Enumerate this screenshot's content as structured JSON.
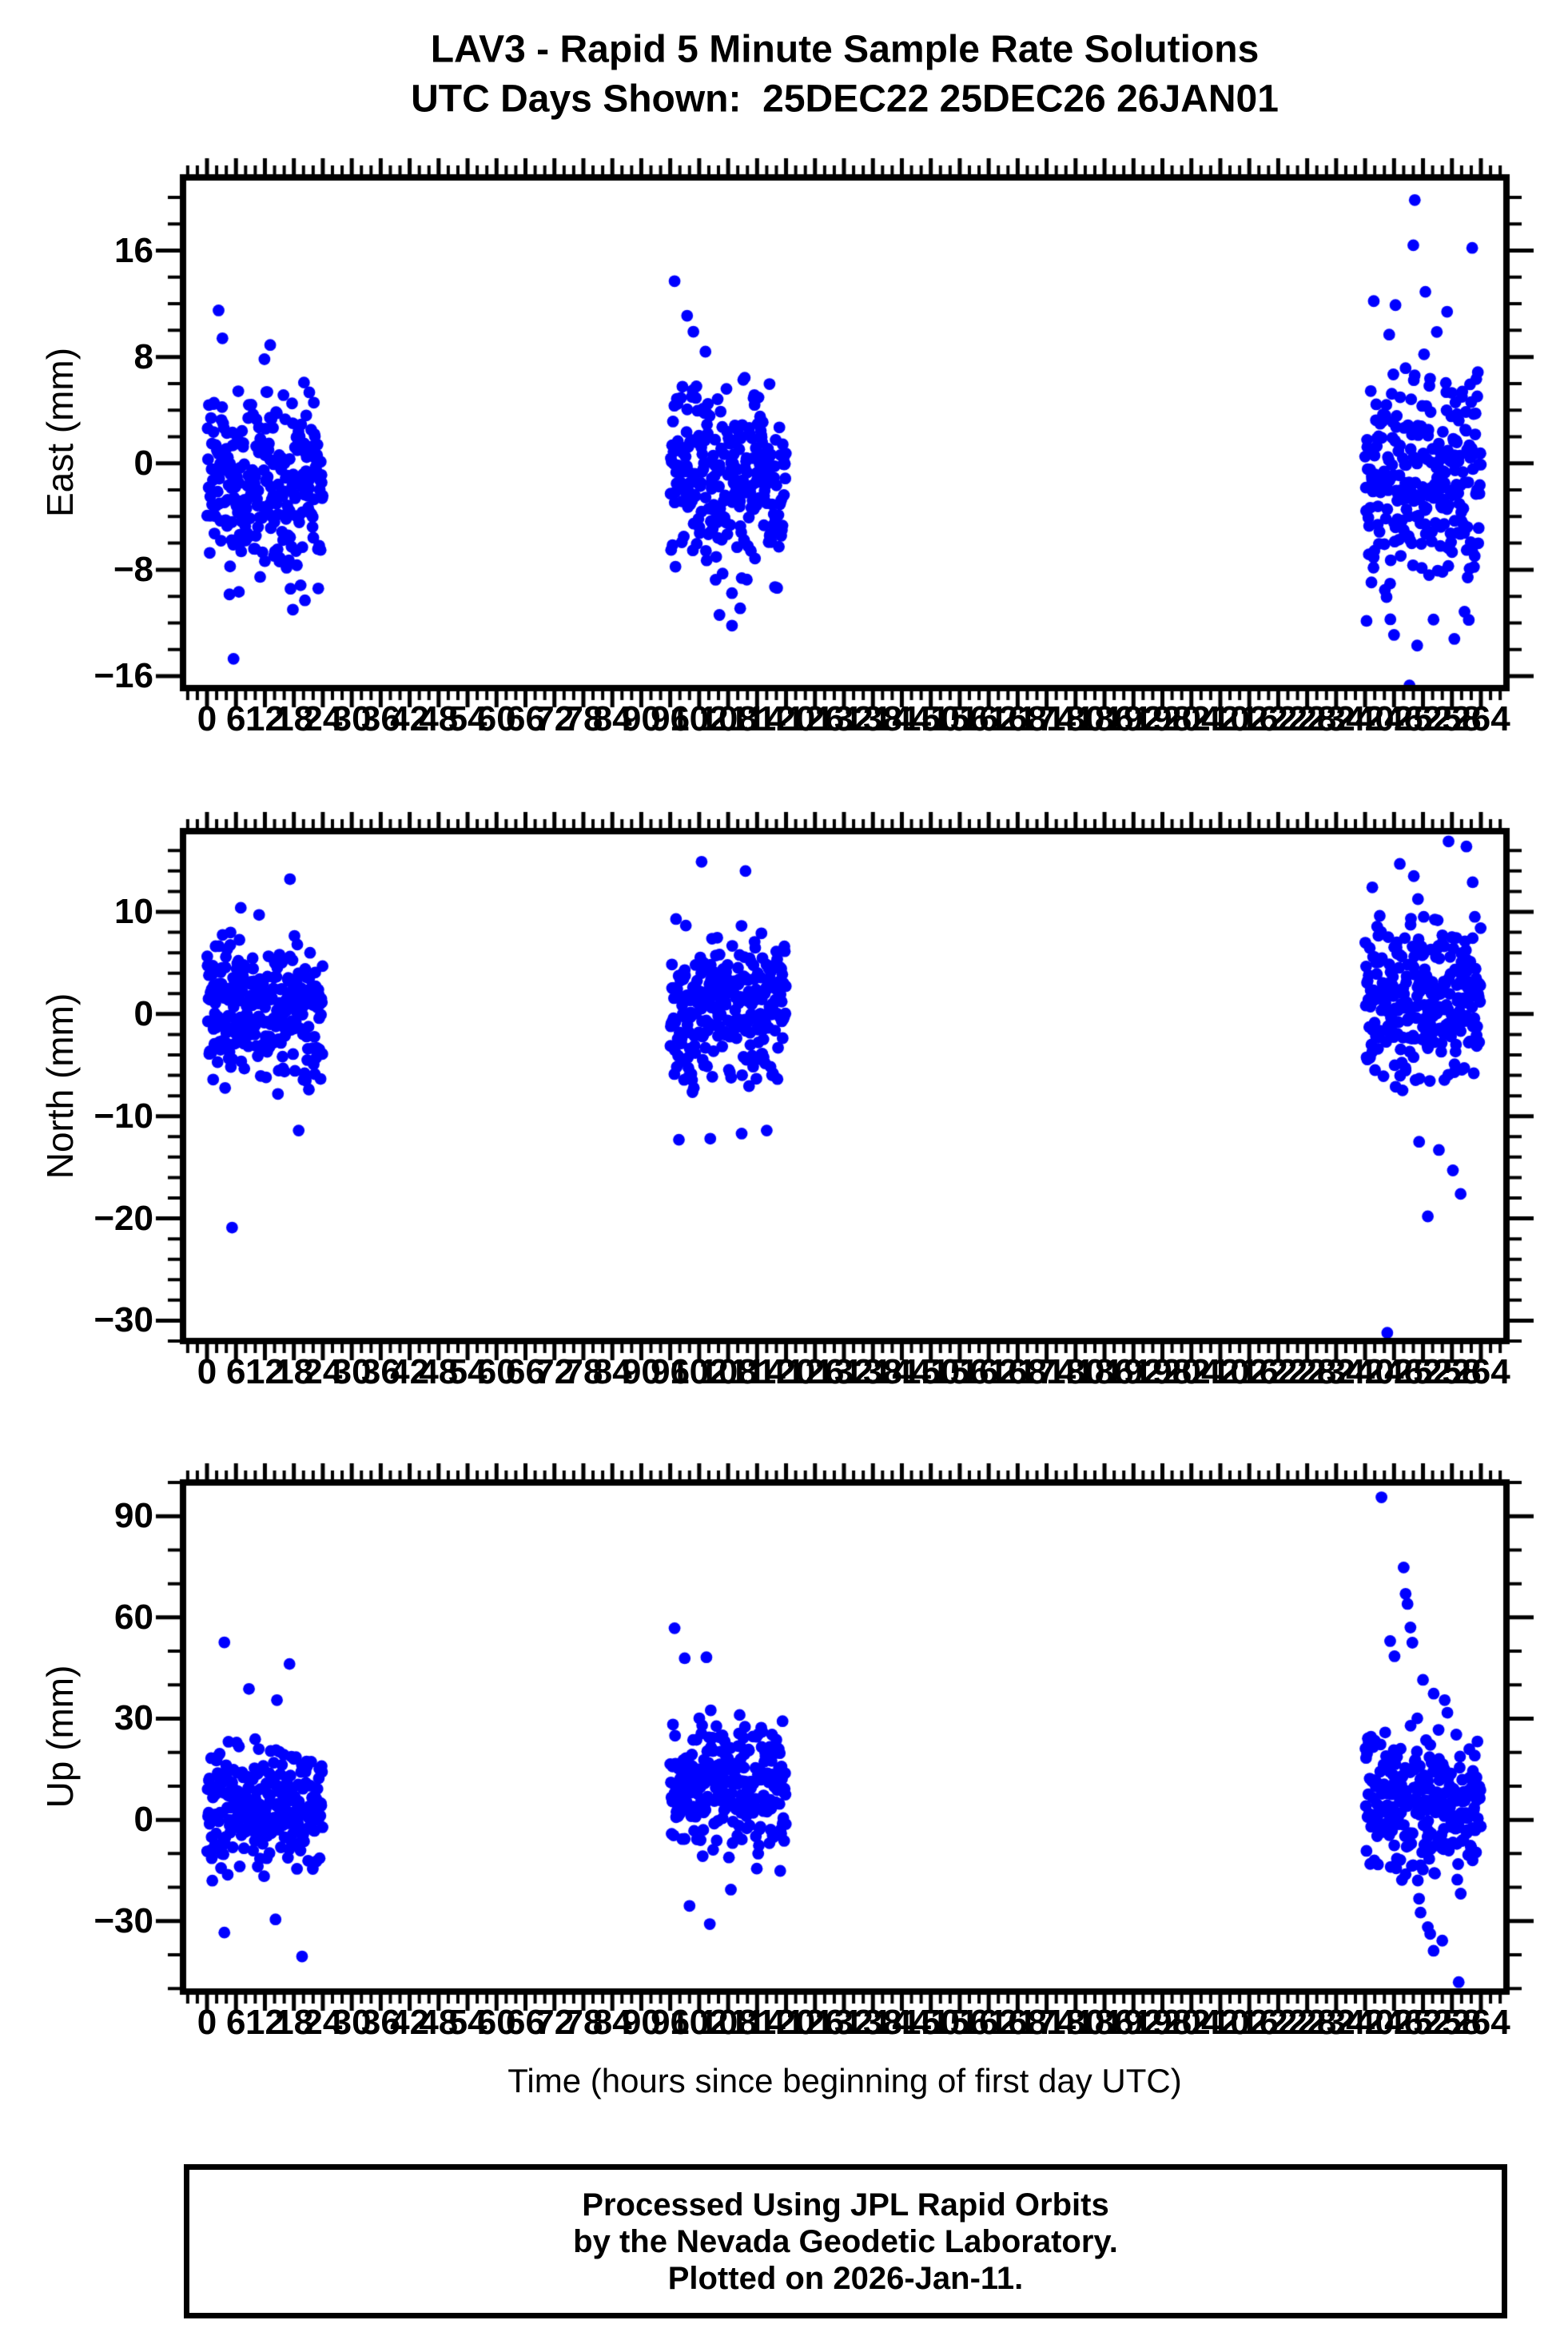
{
  "title": {
    "line1": "LAV3 - Rapid 5 Minute Sample Rate Solutions",
    "line2": "UTC Days Shown:  25DEC22 25DEC26 26JAN01"
  },
  "utc_days": [
    "25DEC22",
    "25DEC26",
    "26JAN01"
  ],
  "xaxis": {
    "label": "Time (hours since beginning of first day UTC)",
    "range_hours": [
      0,
      264
    ],
    "major_tick_step_hours": 6,
    "minor_tick_step_hours": 2,
    "tick_labels": [
      0,
      6,
      12,
      18,
      24,
      30,
      36,
      42,
      48,
      54,
      60,
      66,
      72,
      78,
      84,
      90,
      96,
      102,
      108,
      114,
      120,
      126,
      132,
      138,
      144,
      150,
      156,
      162,
      168,
      174,
      180,
      186,
      192,
      198,
      204,
      210,
      216,
      222,
      228,
      234,
      240,
      246,
      252,
      258,
      264
    ]
  },
  "caption": {
    "line1": "Processed Using JPL Rapid Orbits",
    "line2": "by the Nevada Geodetic Laboratory.",
    "line3": "Plotted on 2026-Jan-11."
  },
  "colors": {
    "point": "#0000ff",
    "axis": "#000000",
    "background": "#ffffff",
    "text": "#000000"
  },
  "seed": 20260111,
  "chart_data": [
    {
      "type": "scatter",
      "name": "East",
      "ylabel": "East (mm)",
      "yticks": [
        16,
        8,
        0,
        -8,
        -16
      ],
      "y_minor_step": 2,
      "ylim": [
        -16.9,
        21.5
      ],
      "xlim": [
        -4.97,
        269.3
      ],
      "clusters": [
        {
          "t_range": [
            0,
            24
          ],
          "n": 272,
          "mean": -1.6,
          "sd": 3.3,
          "min": -10.8,
          "max": 8.2
        },
        {
          "t_range": [
            96,
            120
          ],
          "n": 268,
          "mean": -1.2,
          "sd": 3.3,
          "min": -10.2,
          "max": 7.6
        },
        {
          "t_range": [
            240,
            264
          ],
          "n": 272,
          "mean": -1.6,
          "sd": 4.3,
          "min": -12.6,
          "max": 10.6
        }
      ],
      "outliers": [
        [
          2.4,
          11.5
        ],
        [
          3.2,
          9.4
        ],
        [
          13.1,
          8.9
        ],
        [
          5.5,
          -14.7
        ],
        [
          17.8,
          -11.0
        ],
        [
          20.3,
          -10.3
        ],
        [
          96.9,
          13.7
        ],
        [
          99.5,
          11.1
        ],
        [
          100.8,
          9.9
        ],
        [
          103.3,
          8.4
        ],
        [
          108.8,
          -12.2
        ],
        [
          106.2,
          -11.4
        ],
        [
          110.5,
          -10.9
        ],
        [
          250.3,
          19.8
        ],
        [
          250.0,
          16.4
        ],
        [
          262.2,
          16.2
        ],
        [
          252.5,
          12.9
        ],
        [
          241.8,
          12.2
        ],
        [
          246.3,
          11.9
        ],
        [
          257.0,
          11.4
        ],
        [
          249.2,
          -16.7
        ],
        [
          250.8,
          -13.7
        ],
        [
          258.5,
          -13.2
        ],
        [
          246.0,
          -12.9
        ]
      ]
    },
    {
      "type": "scatter",
      "name": "North",
      "ylabel": "North (mm)",
      "yticks": [
        10,
        0,
        -10,
        -20,
        -30
      ],
      "y_minor_step": 2,
      "ylim": [
        -32.0,
        17.9
      ],
      "xlim": [
        -4.97,
        269.3
      ],
      "clusters": [
        {
          "t_range": [
            0,
            24
          ],
          "n": 272,
          "mean": 0.4,
          "sd": 3.2,
          "min": -8.8,
          "max": 8.4
        },
        {
          "t_range": [
            96,
            120
          ],
          "n": 268,
          "mean": 0.2,
          "sd": 3.5,
          "min": -8.8,
          "max": 8.8
        },
        {
          "t_range": [
            240,
            264
          ],
          "n": 272,
          "mean": 1.6,
          "sd": 4.1,
          "min": -9.2,
          "max": 12.4
        }
      ],
      "outliers": [
        [
          17.2,
          13.2
        ],
        [
          7.0,
          10.4
        ],
        [
          10.8,
          9.7
        ],
        [
          19.0,
          -11.4
        ],
        [
          5.2,
          -20.9
        ],
        [
          102.5,
          14.9
        ],
        [
          111.6,
          14.0
        ],
        [
          97.2,
          9.3
        ],
        [
          114.9,
          7.9
        ],
        [
          97.8,
          -12.3
        ],
        [
          104.3,
          -12.2
        ],
        [
          110.8,
          -11.7
        ],
        [
          116.0,
          -11.4
        ],
        [
          257.3,
          16.9
        ],
        [
          261.0,
          16.4
        ],
        [
          247.2,
          14.7
        ],
        [
          250.1,
          13.5
        ],
        [
          262.3,
          12.9
        ],
        [
          241.5,
          12.4
        ],
        [
          244.6,
          -31.2
        ],
        [
          253.0,
          -19.8
        ],
        [
          258.2,
          -15.3
        ],
        [
          259.8,
          -17.6
        ],
        [
          255.3,
          -13.3
        ],
        [
          251.2,
          -12.5
        ]
      ]
    },
    {
      "type": "scatter",
      "name": "Up",
      "ylabel": "Up (mm)",
      "yticks": [
        90,
        60,
        30,
        0,
        -30
      ],
      "y_minor_step": 10,
      "ylim": [
        -50.9,
        100.0
      ],
      "xlim": [
        -4.97,
        269.3
      ],
      "clusters": [
        {
          "t_range": [
            0,
            24
          ],
          "n": 270,
          "mean": 4.5,
          "sd": 9.5,
          "min": -20.0,
          "max": 33.0
        },
        {
          "t_range": [
            96,
            120
          ],
          "n": 268,
          "mean": 10.5,
          "sd": 10.5,
          "min": -24.0,
          "max": 44.0
        },
        {
          "t_range": [
            240,
            264
          ],
          "n": 272,
          "mean": 4.5,
          "sd": 11.0,
          "min": -27.0,
          "max": 40.0
        }
      ],
      "outliers": [
        [
          3.6,
          52.6
        ],
        [
          17.1,
          46.2
        ],
        [
          8.7,
          38.8
        ],
        [
          14.5,
          35.5
        ],
        [
          3.6,
          -33.4
        ],
        [
          19.7,
          -40.5
        ],
        [
          14.2,
          -29.5
        ],
        [
          96.9,
          56.8
        ],
        [
          99.0,
          47.9
        ],
        [
          103.5,
          48.2
        ],
        [
          104.2,
          -30.9
        ],
        [
          100.0,
          -25.5
        ],
        [
          243.4,
          95.6
        ],
        [
          245.2,
          53.0
        ],
        [
          246.1,
          48.5
        ],
        [
          248.0,
          74.8
        ],
        [
          248.4,
          67.0
        ],
        [
          248.8,
          64.0
        ],
        [
          249.4,
          57.0
        ],
        [
          249.8,
          52.5
        ],
        [
          252.0,
          41.5
        ],
        [
          256.5,
          35.5
        ],
        [
          251.5,
          -27.5
        ],
        [
          253.0,
          -31.8
        ],
        [
          253.5,
          -33.8
        ],
        [
          254.2,
          -38.8
        ],
        [
          256.0,
          -35.8
        ],
        [
          259.4,
          -48.1
        ]
      ]
    }
  ]
}
